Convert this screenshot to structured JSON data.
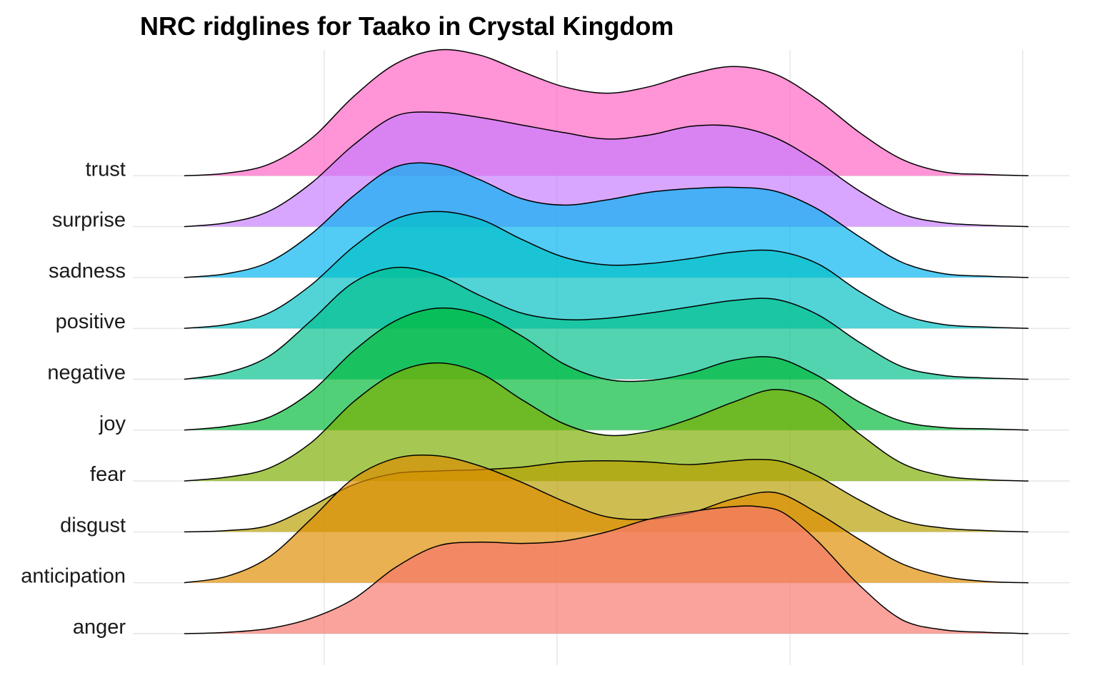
{
  "chart_data": {
    "type": "ridgeline",
    "title": "NRC ridglines for Taako in Crystal Kingdom",
    "xlabel": "",
    "ylabel": "",
    "x_range": [
      0,
      1
    ],
    "legend": "none",
    "grid": true,
    "categories": [
      "anger",
      "anticipation",
      "disgust",
      "fear",
      "joy",
      "negative",
      "positive",
      "sadness",
      "surprise",
      "trust"
    ],
    "series": [
      {
        "name": "anger",
        "color": "#F8766D",
        "density": [
          [
            0.0,
            0.0
          ],
          [
            0.05,
            0.01
          ],
          [
            0.1,
            0.04
          ],
          [
            0.15,
            0.12
          ],
          [
            0.2,
            0.27
          ],
          [
            0.25,
            0.52
          ],
          [
            0.3,
            0.69
          ],
          [
            0.35,
            0.72
          ],
          [
            0.4,
            0.71
          ],
          [
            0.45,
            0.73
          ],
          [
            0.5,
            0.8
          ],
          [
            0.55,
            0.9
          ],
          [
            0.6,
            0.96
          ],
          [
            0.65,
            1.0
          ],
          [
            0.68,
            1.0
          ],
          [
            0.71,
            0.95
          ],
          [
            0.75,
            0.73
          ],
          [
            0.8,
            0.38
          ],
          [
            0.85,
            0.11
          ],
          [
            0.9,
            0.03
          ],
          [
            0.95,
            0.01
          ],
          [
            1.0,
            0.0
          ]
        ]
      },
      {
        "name": "anticipation",
        "color": "#DE8C00",
        "density": [
          [
            0.0,
            0.0
          ],
          [
            0.05,
            0.05
          ],
          [
            0.1,
            0.2
          ],
          [
            0.15,
            0.5
          ],
          [
            0.2,
            0.82
          ],
          [
            0.25,
            0.98
          ],
          [
            0.3,
            1.0
          ],
          [
            0.35,
            0.92
          ],
          [
            0.4,
            0.79
          ],
          [
            0.45,
            0.64
          ],
          [
            0.5,
            0.52
          ],
          [
            0.55,
            0.5
          ],
          [
            0.6,
            0.55
          ],
          [
            0.65,
            0.66
          ],
          [
            0.7,
            0.71
          ],
          [
            0.75,
            0.55
          ],
          [
            0.8,
            0.34
          ],
          [
            0.85,
            0.15
          ],
          [
            0.9,
            0.05
          ],
          [
            0.95,
            0.01
          ],
          [
            1.0,
            0.0
          ]
        ]
      },
      {
        "name": "disgust",
        "color": "#B79F00",
        "density": [
          [
            0.0,
            0.0
          ],
          [
            0.05,
            0.01
          ],
          [
            0.1,
            0.05
          ],
          [
            0.15,
            0.2
          ],
          [
            0.2,
            0.37
          ],
          [
            0.25,
            0.46
          ],
          [
            0.3,
            0.48
          ],
          [
            0.35,
            0.49
          ],
          [
            0.4,
            0.51
          ],
          [
            0.45,
            0.55
          ],
          [
            0.5,
            0.56
          ],
          [
            0.55,
            0.55
          ],
          [
            0.6,
            0.53
          ],
          [
            0.65,
            0.56
          ],
          [
            0.68,
            0.57
          ],
          [
            0.71,
            0.55
          ],
          [
            0.75,
            0.44
          ],
          [
            0.8,
            0.25
          ],
          [
            0.85,
            0.09
          ],
          [
            0.9,
            0.03
          ],
          [
            0.95,
            0.01
          ],
          [
            1.0,
            0.0
          ]
        ]
      },
      {
        "name": "fear",
        "color": "#7CAE00",
        "density": [
          [
            0.0,
            0.0
          ],
          [
            0.05,
            0.03
          ],
          [
            0.1,
            0.1
          ],
          [
            0.15,
            0.3
          ],
          [
            0.2,
            0.62
          ],
          [
            0.25,
            0.85
          ],
          [
            0.3,
            0.93
          ],
          [
            0.35,
            0.85
          ],
          [
            0.4,
            0.64
          ],
          [
            0.45,
            0.45
          ],
          [
            0.5,
            0.36
          ],
          [
            0.55,
            0.39
          ],
          [
            0.6,
            0.49
          ],
          [
            0.65,
            0.62
          ],
          [
            0.7,
            0.72
          ],
          [
            0.75,
            0.63
          ],
          [
            0.8,
            0.37
          ],
          [
            0.85,
            0.14
          ],
          [
            0.9,
            0.04
          ],
          [
            0.95,
            0.01
          ],
          [
            1.0,
            0.0
          ]
        ]
      },
      {
        "name": "joy",
        "color": "#00BA38",
        "density": [
          [
            0.0,
            0.0
          ],
          [
            0.05,
            0.03
          ],
          [
            0.1,
            0.1
          ],
          [
            0.15,
            0.3
          ],
          [
            0.2,
            0.62
          ],
          [
            0.25,
            0.86
          ],
          [
            0.3,
            0.96
          ],
          [
            0.35,
            0.91
          ],
          [
            0.4,
            0.74
          ],
          [
            0.45,
            0.52
          ],
          [
            0.5,
            0.4
          ],
          [
            0.55,
            0.39
          ],
          [
            0.6,
            0.45
          ],
          [
            0.65,
            0.55
          ],
          [
            0.7,
            0.57
          ],
          [
            0.75,
            0.43
          ],
          [
            0.8,
            0.22
          ],
          [
            0.85,
            0.07
          ],
          [
            0.9,
            0.02
          ],
          [
            0.95,
            0.01
          ],
          [
            1.0,
            0.0
          ]
        ]
      },
      {
        "name": "negative",
        "color": "#00C08B",
        "density": [
          [
            0.0,
            0.0
          ],
          [
            0.05,
            0.05
          ],
          [
            0.1,
            0.18
          ],
          [
            0.15,
            0.46
          ],
          [
            0.2,
            0.76
          ],
          [
            0.25,
            0.88
          ],
          [
            0.3,
            0.82
          ],
          [
            0.35,
            0.66
          ],
          [
            0.4,
            0.52
          ],
          [
            0.45,
            0.47
          ],
          [
            0.5,
            0.48
          ],
          [
            0.55,
            0.52
          ],
          [
            0.6,
            0.57
          ],
          [
            0.65,
            0.62
          ],
          [
            0.7,
            0.63
          ],
          [
            0.75,
            0.51
          ],
          [
            0.8,
            0.29
          ],
          [
            0.85,
            0.1
          ],
          [
            0.9,
            0.03
          ],
          [
            0.95,
            0.01
          ],
          [
            1.0,
            0.0
          ]
        ]
      },
      {
        "name": "positive",
        "color": "#00BFC4",
        "density": [
          [
            0.0,
            0.0
          ],
          [
            0.05,
            0.03
          ],
          [
            0.1,
            0.12
          ],
          [
            0.15,
            0.34
          ],
          [
            0.2,
            0.64
          ],
          [
            0.25,
            0.86
          ],
          [
            0.3,
            0.92
          ],
          [
            0.35,
            0.86
          ],
          [
            0.4,
            0.7
          ],
          [
            0.45,
            0.56
          ],
          [
            0.5,
            0.5
          ],
          [
            0.55,
            0.51
          ],
          [
            0.6,
            0.55
          ],
          [
            0.65,
            0.6
          ],
          [
            0.7,
            0.61
          ],
          [
            0.75,
            0.51
          ],
          [
            0.8,
            0.29
          ],
          [
            0.85,
            0.11
          ],
          [
            0.9,
            0.03
          ],
          [
            0.95,
            0.01
          ],
          [
            1.0,
            0.0
          ]
        ]
      },
      {
        "name": "sadness",
        "color": "#00B4F0",
        "density": [
          [
            0.0,
            0.0
          ],
          [
            0.05,
            0.03
          ],
          [
            0.1,
            0.12
          ],
          [
            0.15,
            0.34
          ],
          [
            0.2,
            0.64
          ],
          [
            0.25,
            0.87
          ],
          [
            0.3,
            0.89
          ],
          [
            0.35,
            0.77
          ],
          [
            0.4,
            0.62
          ],
          [
            0.45,
            0.57
          ],
          [
            0.5,
            0.61
          ],
          [
            0.55,
            0.67
          ],
          [
            0.6,
            0.7
          ],
          [
            0.65,
            0.71
          ],
          [
            0.7,
            0.68
          ],
          [
            0.75,
            0.54
          ],
          [
            0.8,
            0.32
          ],
          [
            0.85,
            0.12
          ],
          [
            0.9,
            0.03
          ],
          [
            0.95,
            0.01
          ],
          [
            1.0,
            0.0
          ]
        ]
      },
      {
        "name": "surprise",
        "color": "#C77CFF",
        "density": [
          [
            0.0,
            0.0
          ],
          [
            0.05,
            0.03
          ],
          [
            0.1,
            0.12
          ],
          [
            0.15,
            0.34
          ],
          [
            0.2,
            0.64
          ],
          [
            0.25,
            0.87
          ],
          [
            0.3,
            0.9
          ],
          [
            0.35,
            0.86
          ],
          [
            0.4,
            0.8
          ],
          [
            0.45,
            0.74
          ],
          [
            0.5,
            0.69
          ],
          [
            0.55,
            0.72
          ],
          [
            0.6,
            0.79
          ],
          [
            0.65,
            0.79
          ],
          [
            0.7,
            0.7
          ],
          [
            0.75,
            0.51
          ],
          [
            0.8,
            0.28
          ],
          [
            0.85,
            0.1
          ],
          [
            0.9,
            0.03
          ],
          [
            0.95,
            0.01
          ],
          [
            1.0,
            0.0
          ]
        ]
      },
      {
        "name": "trust",
        "color": "#FF61C3",
        "density": [
          [
            0.0,
            0.0
          ],
          [
            0.05,
            0.02
          ],
          [
            0.1,
            0.09
          ],
          [
            0.15,
            0.29
          ],
          [
            0.2,
            0.62
          ],
          [
            0.25,
            0.88
          ],
          [
            0.3,
            0.99
          ],
          [
            0.35,
            0.95
          ],
          [
            0.4,
            0.82
          ],
          [
            0.45,
            0.7
          ],
          [
            0.5,
            0.65
          ],
          [
            0.55,
            0.7
          ],
          [
            0.6,
            0.8
          ],
          [
            0.65,
            0.86
          ],
          [
            0.7,
            0.8
          ],
          [
            0.75,
            0.6
          ],
          [
            0.8,
            0.34
          ],
          [
            0.85,
            0.13
          ],
          [
            0.9,
            0.03
          ],
          [
            0.95,
            0.01
          ],
          [
            1.0,
            0.0
          ]
        ]
      }
    ]
  }
}
